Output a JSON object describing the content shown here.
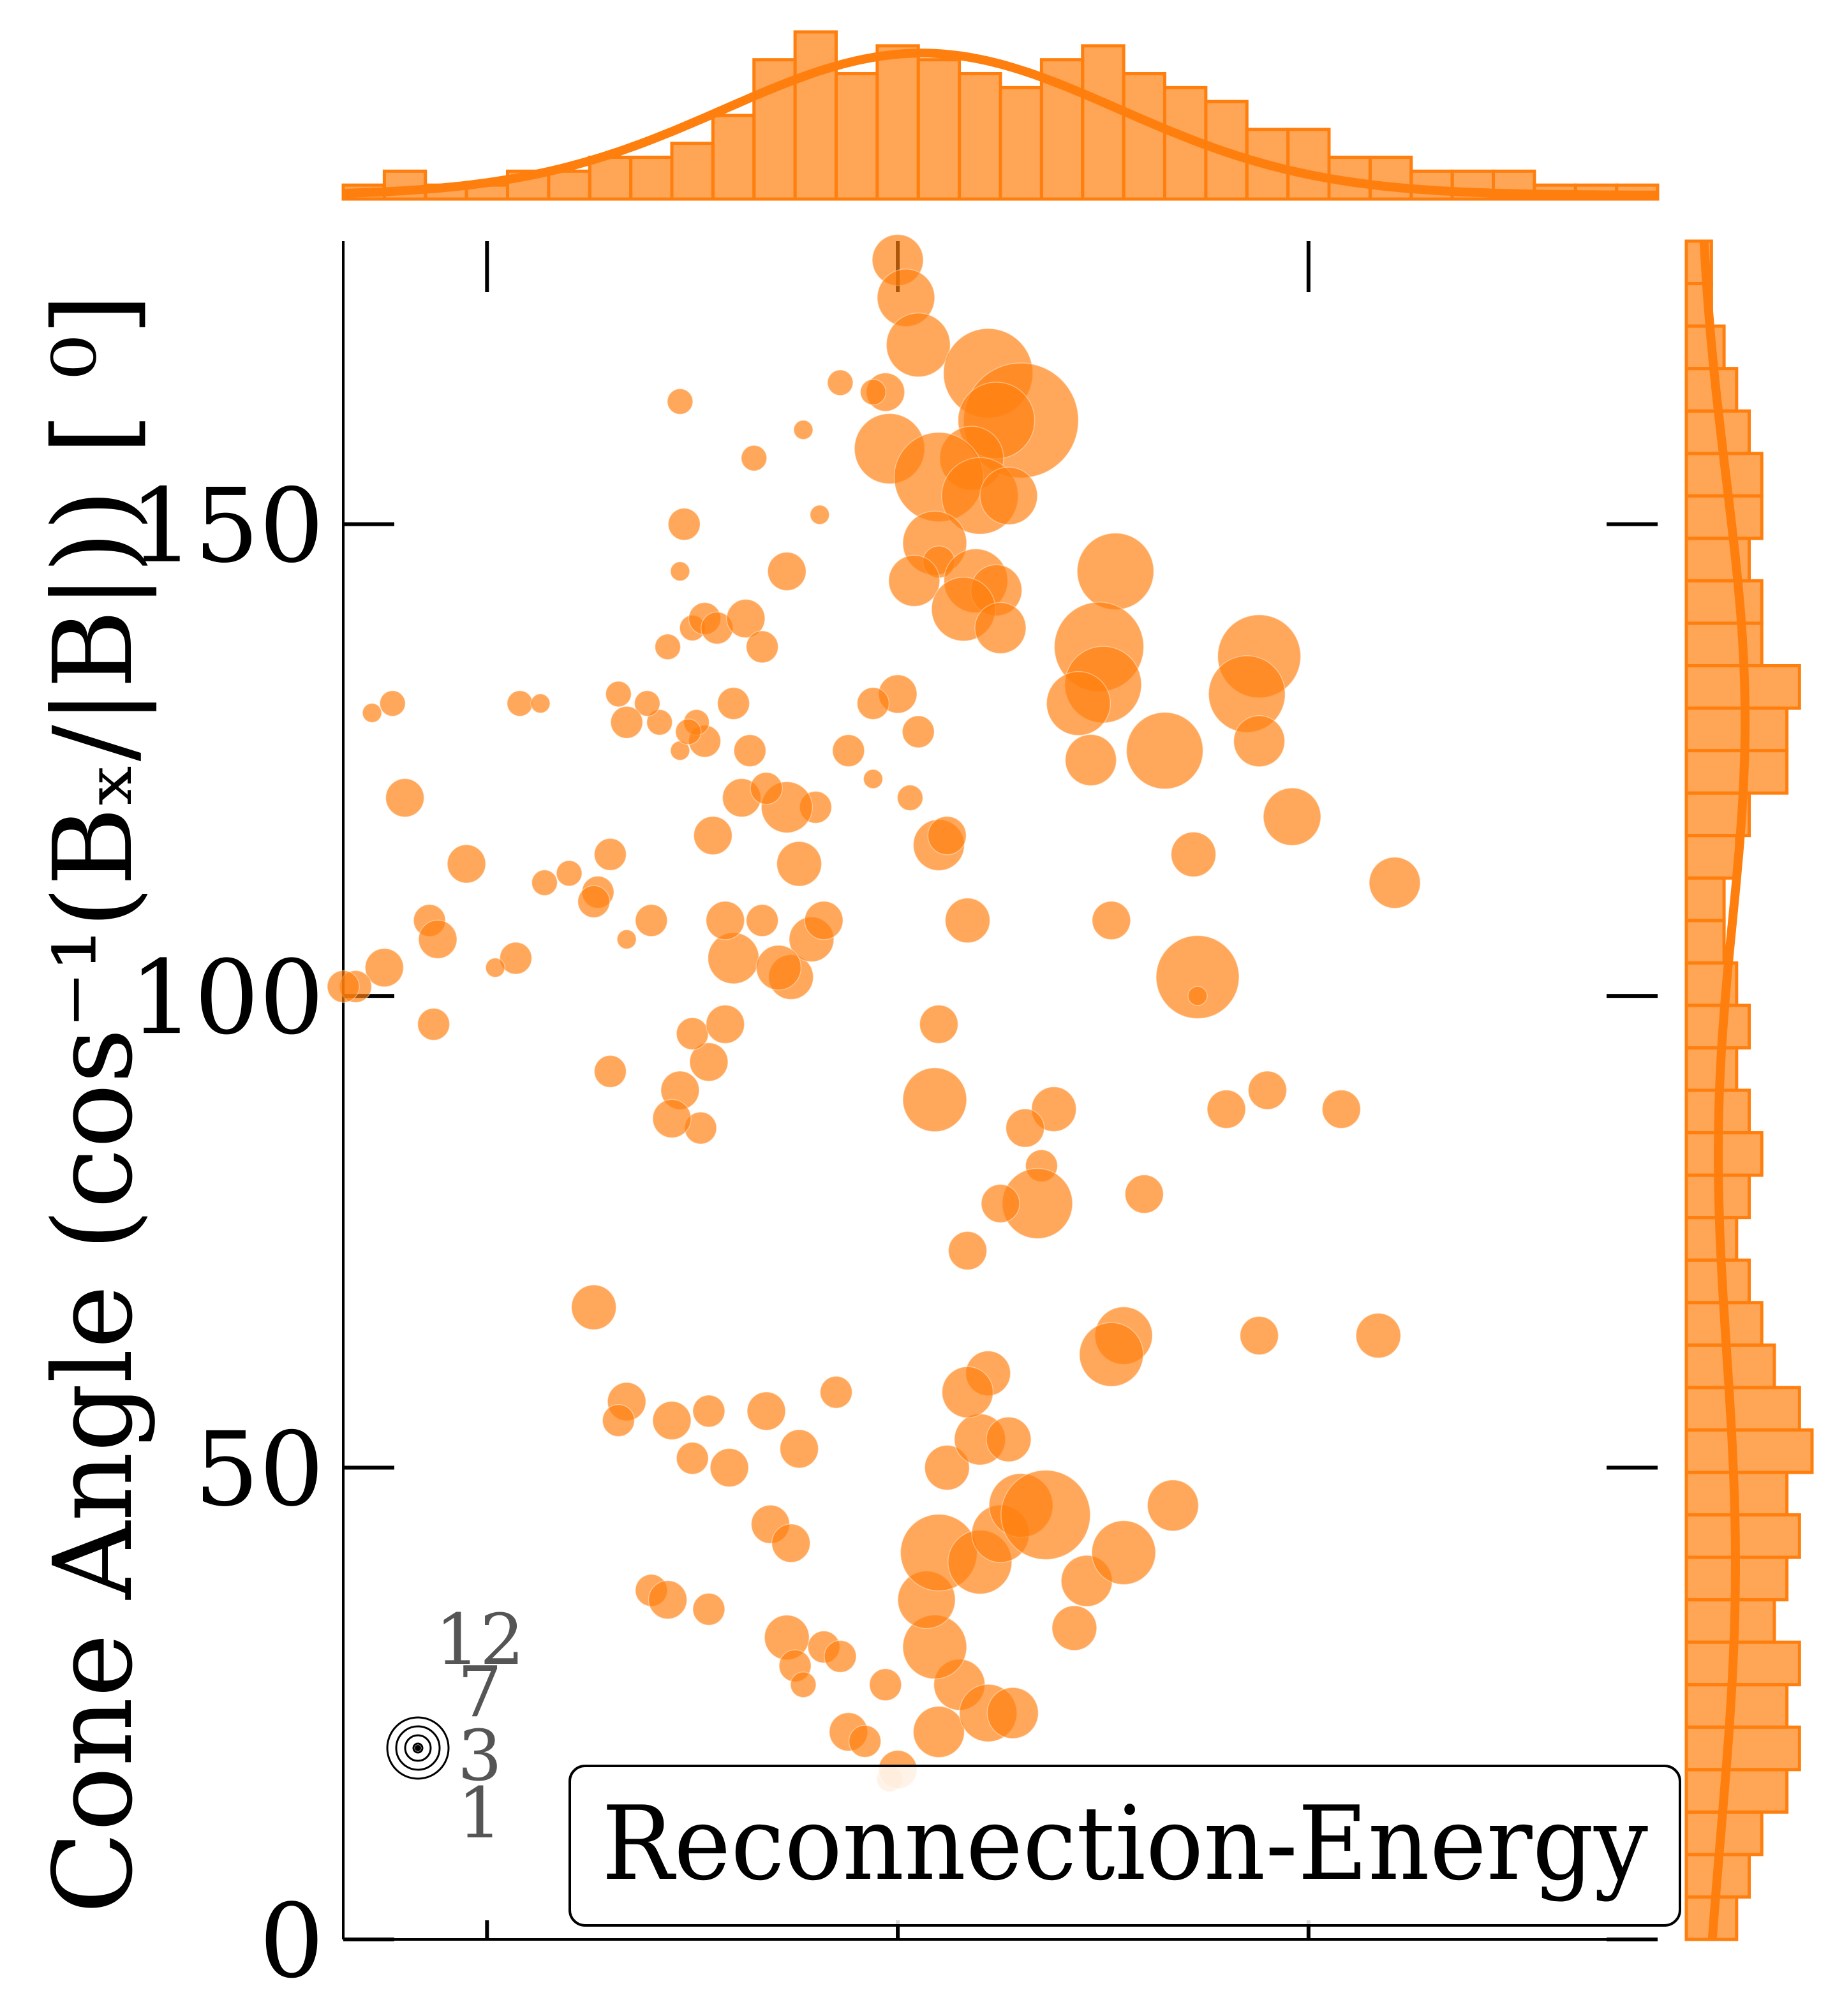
{
  "chart_data": {
    "type": "scatter",
    "title": "",
    "ylabel": "Cone Angle (cos⁻¹(Bₓ/|B|)) [ ⁰]",
    "xlabel": "",
    "annotation": "Reconnection-Energy",
    "ylim": [
      0,
      180
    ],
    "xlim": [
      -1.35,
      1.85
    ],
    "y_ticks": [
      0,
      50,
      100,
      150
    ],
    "x_ticks": [
      -1,
      0,
      1
    ],
    "color": "#ff7f0e",
    "size_legend": {
      "labels": [
        "12",
        "7",
        "3",
        "1"
      ],
      "values": [
        12,
        7,
        3,
        1
      ]
    },
    "points": [
      [
        0.0,
        178,
        8
      ],
      [
        0.02,
        174,
        9
      ],
      [
        0.05,
        169,
        10
      ],
      [
        -0.03,
        164,
        6
      ],
      [
        0.22,
        166,
        14
      ],
      [
        0.3,
        161,
        18
      ],
      [
        0.24,
        161,
        12
      ],
      [
        -0.02,
        158,
        11
      ],
      [
        0.18,
        157,
        10
      ],
      [
        0.1,
        155,
        14
      ],
      [
        0.2,
        153,
        12
      ],
      [
        0.27,
        153,
        9
      ],
      [
        0.09,
        148,
        10
      ],
      [
        0.1,
        146,
        5
      ],
      [
        0.04,
        144,
        8
      ],
      [
        0.19,
        144,
        10
      ],
      [
        0.24,
        143,
        8
      ],
      [
        0.16,
        141,
        10
      ],
      [
        0.25,
        139,
        8
      ],
      [
        0.53,
        145,
        12
      ],
      [
        0.49,
        137,
        14
      ],
      [
        0.5,
        133,
        12
      ],
      [
        0.44,
        131,
        10
      ],
      [
        0.65,
        126,
        12
      ],
      [
        0.47,
        125,
        8
      ],
      [
        0.88,
        136,
        13
      ],
      [
        0.85,
        132,
        12
      ],
      [
        0.88,
        127,
        8
      ],
      [
        0.96,
        119,
        9
      ],
      [
        1.21,
        112,
        8
      ],
      [
        0.72,
        115,
        7
      ],
      [
        0.52,
        108,
        6
      ],
      [
        0.73,
        102,
        13
      ],
      [
        0.73,
        100,
        3
      ],
      [
        1.08,
        88,
        6
      ],
      [
        0.9,
        90,
        6
      ],
      [
        0.8,
        88,
        6
      ],
      [
        0.1,
        97,
        6
      ],
      [
        0.09,
        89,
        10
      ],
      [
        0.38,
        88,
        7
      ],
      [
        0.31,
        86,
        6
      ],
      [
        0.35,
        82,
        5
      ],
      [
        0.34,
        78,
        11
      ],
      [
        0.25,
        78,
        6
      ],
      [
        0.6,
        79,
        6
      ],
      [
        0.1,
        116,
        8
      ],
      [
        0.12,
        117,
        6
      ],
      [
        0.17,
        108,
        7
      ],
      [
        0.0,
        132,
        6
      ],
      [
        0.05,
        128,
        5
      ],
      [
        -0.06,
        131,
        5
      ],
      [
        0.03,
        121,
        4
      ],
      [
        -0.12,
        126,
        5
      ],
      [
        -0.2,
        120,
        5
      ],
      [
        -0.06,
        123,
        3
      ],
      [
        -0.27,
        120,
        8
      ],
      [
        -0.24,
        114,
        7
      ],
      [
        -0.38,
        121,
        6
      ],
      [
        -0.45,
        117,
        6
      ],
      [
        -0.26,
        102,
        7
      ],
      [
        -0.21,
        106,
        7
      ],
      [
        -0.18,
        108,
        6
      ],
      [
        -0.4,
        104,
        8
      ],
      [
        -0.42,
        108,
        6
      ],
      [
        -0.29,
        103,
        7
      ],
      [
        -0.53,
        90,
        6
      ],
      [
        -0.48,
        86,
        5
      ],
      [
        -0.55,
        87,
        6
      ],
      [
        -0.46,
        93,
        6
      ],
      [
        -0.5,
        96,
        5
      ],
      [
        -0.33,
        108,
        5
      ],
      [
        -0.32,
        122,
        5
      ],
      [
        -0.36,
        126,
        5
      ],
      [
        -0.47,
        127,
        5
      ],
      [
        -0.49,
        129,
        4
      ],
      [
        -0.53,
        126,
        3
      ],
      [
        -0.4,
        131,
        5
      ],
      [
        -0.6,
        108,
        5
      ],
      [
        -0.66,
        106,
        3
      ],
      [
        -0.73,
        111,
        5
      ],
      [
        -0.7,
        115,
        5
      ],
      [
        -0.74,
        110,
        5
      ],
      [
        -0.8,
        113,
        4
      ],
      [
        -0.86,
        112,
        4
      ],
      [
        -0.93,
        104,
        5
      ],
      [
        -0.98,
        103,
        3
      ],
      [
        -1.05,
        114,
        6
      ],
      [
        -1.14,
        108,
        5
      ],
      [
        -1.25,
        103,
        6
      ],
      [
        -1.32,
        101,
        5
      ],
      [
        -1.35,
        101,
        5
      ],
      [
        -1.12,
        106,
        6
      ],
      [
        -1.2,
        121,
        6
      ],
      [
        -1.13,
        97,
        5
      ],
      [
        -0.7,
        92,
        5
      ],
      [
        -0.42,
        97,
        6
      ],
      [
        -0.51,
        128,
        4
      ],
      [
        -0.58,
        129,
        4
      ],
      [
        -0.61,
        131,
        4
      ],
      [
        -0.66,
        129,
        5
      ],
      [
        -0.68,
        132,
        4
      ],
      [
        -0.56,
        137,
        4
      ],
      [
        -0.5,
        139,
        4
      ],
      [
        -0.47,
        140,
        5
      ],
      [
        -0.44,
        139,
        5
      ],
      [
        -0.53,
        145,
        3
      ],
      [
        -0.37,
        140,
        6
      ],
      [
        -0.33,
        137,
        5
      ],
      [
        -0.27,
        145,
        6
      ],
      [
        -0.19,
        151,
        3
      ],
      [
        -0.52,
        150,
        5
      ],
      [
        -0.53,
        163,
        4
      ],
      [
        -0.35,
        157,
        4
      ],
      [
        -0.23,
        160,
        3
      ],
      [
        -0.14,
        165,
        4
      ],
      [
        -0.06,
        164,
        4
      ],
      [
        -0.92,
        131,
        4
      ],
      [
        -0.87,
        131,
        3
      ],
      [
        -1.23,
        131,
        4
      ],
      [
        -1.28,
        130,
        3
      ],
      [
        -0.74,
        67,
        7
      ],
      [
        -0.66,
        57,
        6
      ],
      [
        -0.68,
        55,
        5
      ],
      [
        -0.55,
        55,
        6
      ],
      [
        -0.5,
        51,
        5
      ],
      [
        -0.41,
        50,
        6
      ],
      [
        -0.46,
        56,
        5
      ],
      [
        -0.32,
        56,
        6
      ],
      [
        -0.24,
        52,
        6
      ],
      [
        -0.15,
        58,
        5
      ],
      [
        -0.31,
        44,
        6
      ],
      [
        -0.26,
        42,
        6
      ],
      [
        -0.6,
        37,
        5
      ],
      [
        -0.56,
        36,
        6
      ],
      [
        -0.46,
        35,
        5
      ],
      [
        -0.27,
        32,
        7
      ],
      [
        -0.25,
        29,
        5
      ],
      [
        -0.23,
        27,
        4
      ],
      [
        -0.18,
        31,
        5
      ],
      [
        -0.14,
        30,
        5
      ],
      [
        -0.03,
        27,
        5
      ],
      [
        -0.12,
        22,
        6
      ],
      [
        -0.08,
        21,
        5
      ],
      [
        -0.02,
        17,
        4
      ],
      [
        0.0,
        18,
        6
      ],
      [
        0.1,
        22,
        8
      ],
      [
        0.15,
        27,
        8
      ],
      [
        0.22,
        24,
        9
      ],
      [
        0.28,
        24,
        8
      ],
      [
        0.09,
        31,
        10
      ],
      [
        0.07,
        36,
        9
      ],
      [
        0.1,
        41,
        12
      ],
      [
        0.2,
        40,
        10
      ],
      [
        0.25,
        43,
        9
      ],
      [
        0.3,
        46,
        10
      ],
      [
        0.36,
        45,
        14
      ],
      [
        0.46,
        38,
        8
      ],
      [
        0.55,
        41,
        10
      ],
      [
        0.67,
        46,
        8
      ],
      [
        0.43,
        33,
        7
      ],
      [
        0.12,
        50,
        7
      ],
      [
        0.2,
        53,
        8
      ],
      [
        0.22,
        60,
        7
      ],
      [
        0.17,
        58,
        8
      ],
      [
        0.27,
        53,
        7
      ],
      [
        0.55,
        64,
        9
      ],
      [
        0.52,
        62,
        10
      ],
      [
        0.88,
        64,
        6
      ],
      [
        1.17,
        64,
        7
      ],
      [
        0.17,
        73,
        6
      ]
    ],
    "top_hist_bins": [
      1,
      2,
      1,
      1,
      2,
      2,
      3,
      3,
      4,
      6,
      10,
      12,
      9,
      11,
      10,
      9,
      8,
      10,
      11,
      9,
      8,
      7,
      5,
      5,
      3,
      3,
      2,
      2,
      2,
      1,
      1,
      1
    ],
    "right_hist_bins": [
      2,
      2,
      3,
      4,
      5,
      6,
      6,
      5,
      6,
      6,
      9,
      8,
      8,
      5,
      4,
      3,
      3,
      4,
      5,
      4,
      5,
      6,
      5,
      4,
      5,
      6,
      7,
      9,
      10,
      8,
      9,
      8,
      7,
      9,
      8,
      9,
      8,
      6,
      5,
      4
    ]
  }
}
